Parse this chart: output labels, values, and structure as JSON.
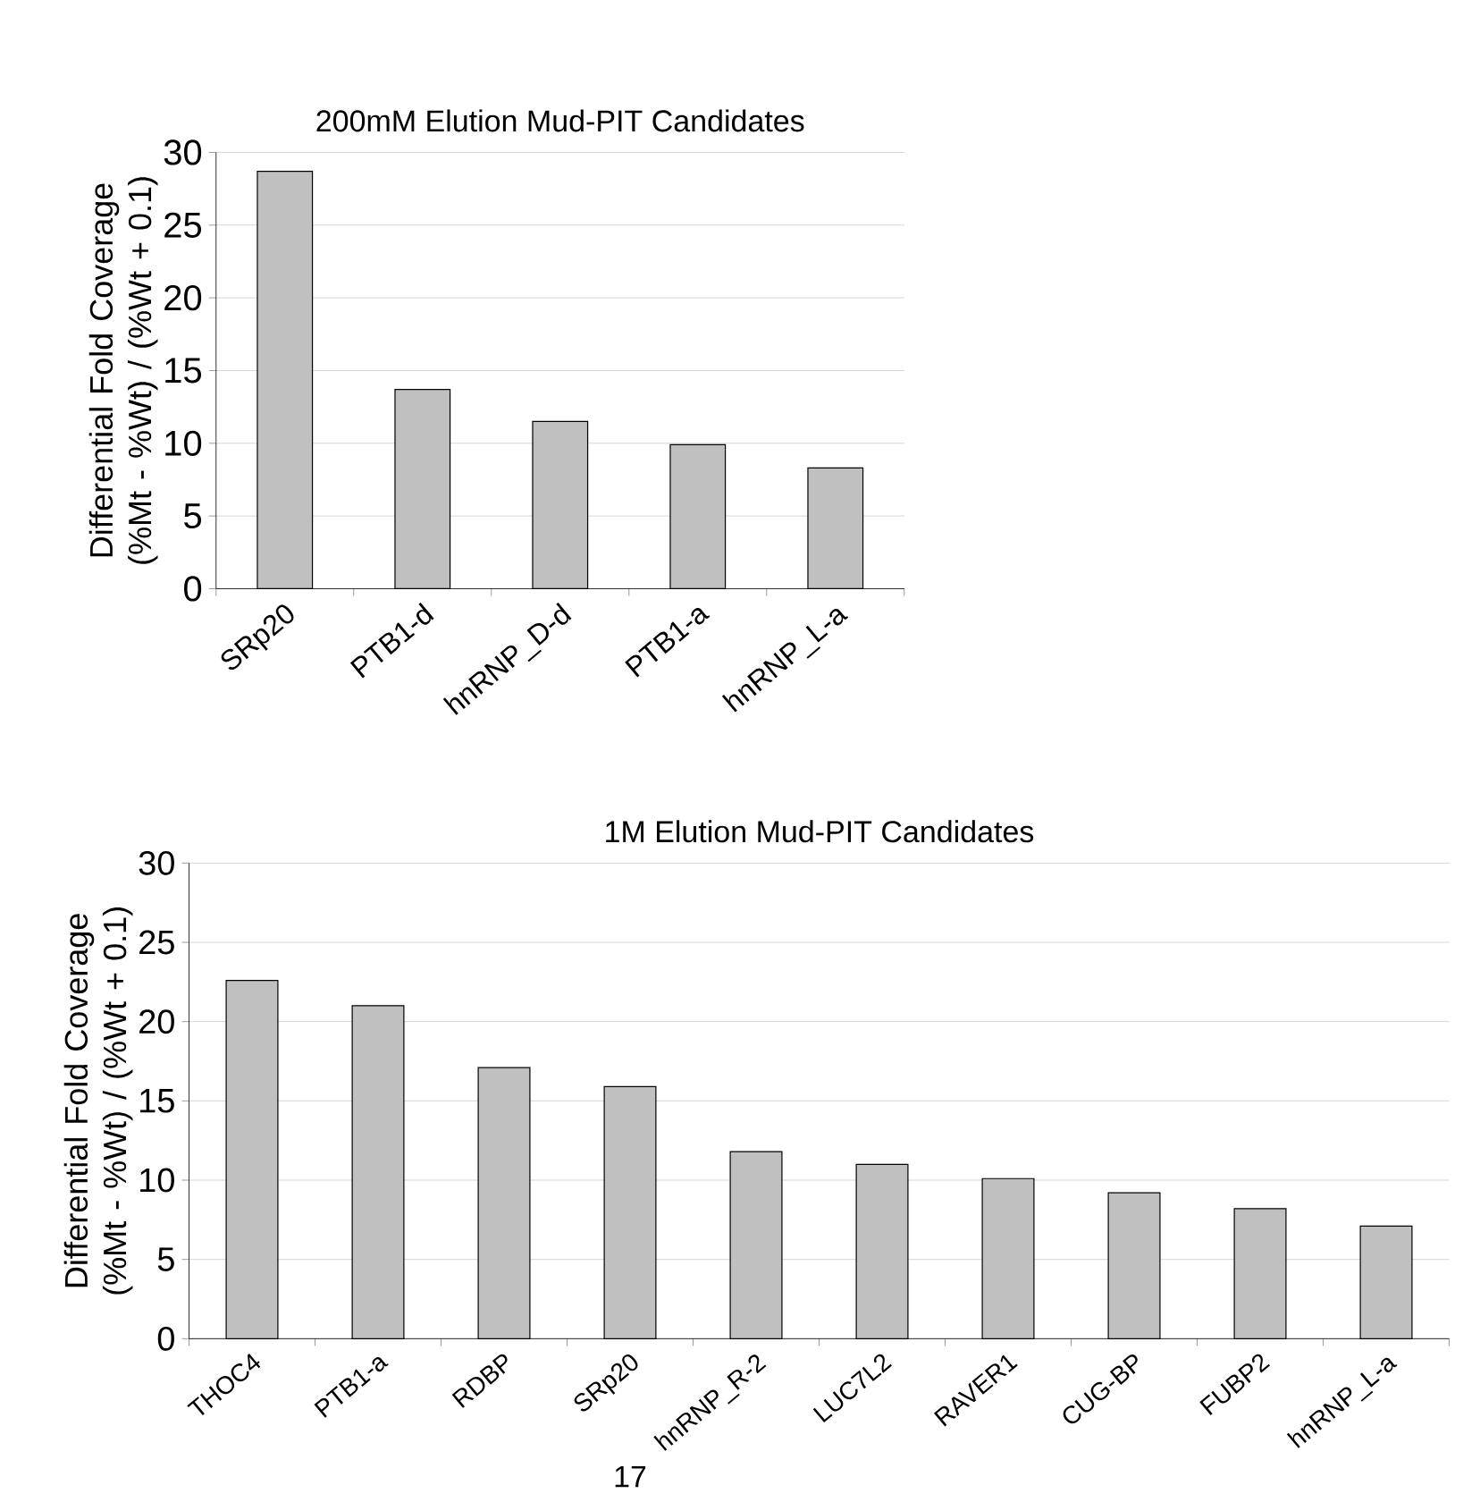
{
  "chart_data": [
    {
      "type": "bar",
      "title": "200mM Elution Mud-PIT Candidates",
      "ylabel": "Differential Fold Coverage (%Mt - %Wt) / (%Wt + 0.1)",
      "categories": [
        "SRp20",
        "PTB1-d",
        "hnRNP_D-d",
        "PTB1-a",
        "hnRNP_L-a"
      ],
      "values": [
        28.7,
        13.7,
        11.5,
        9.9,
        8.3
      ],
      "color": "#c0c0c0",
      "ylim": [
        0,
        30
      ],
      "yticks": [
        0,
        5,
        10,
        15,
        20,
        25,
        30
      ],
      "grid": "y"
    },
    {
      "type": "bar",
      "title": "1M Elution Mud-PIT Candidates",
      "ylabel": "Differential Fold Coverage (%Mt - %Wt) / (%Wt + 0.1)",
      "categories": [
        "THOC4",
        "PTB1-a",
        "RDBP",
        "SRp20",
        "hnRNP_R-2",
        "LUC7L2",
        "RAVER1",
        "CUG-BP",
        "FUBP2",
        "hnRNP_L-a"
      ],
      "values": [
        22.6,
        21.0,
        17.1,
        15.9,
        11.8,
        11.0,
        10.1,
        9.2,
        8.2,
        7.1
      ],
      "color": "#c0c0c0",
      "ylim": [
        0,
        30
      ],
      "yticks": [
        0,
        5,
        10,
        15,
        20,
        25,
        30
      ],
      "grid": "y",
      "annotations": [
        "17"
      ]
    }
  ]
}
